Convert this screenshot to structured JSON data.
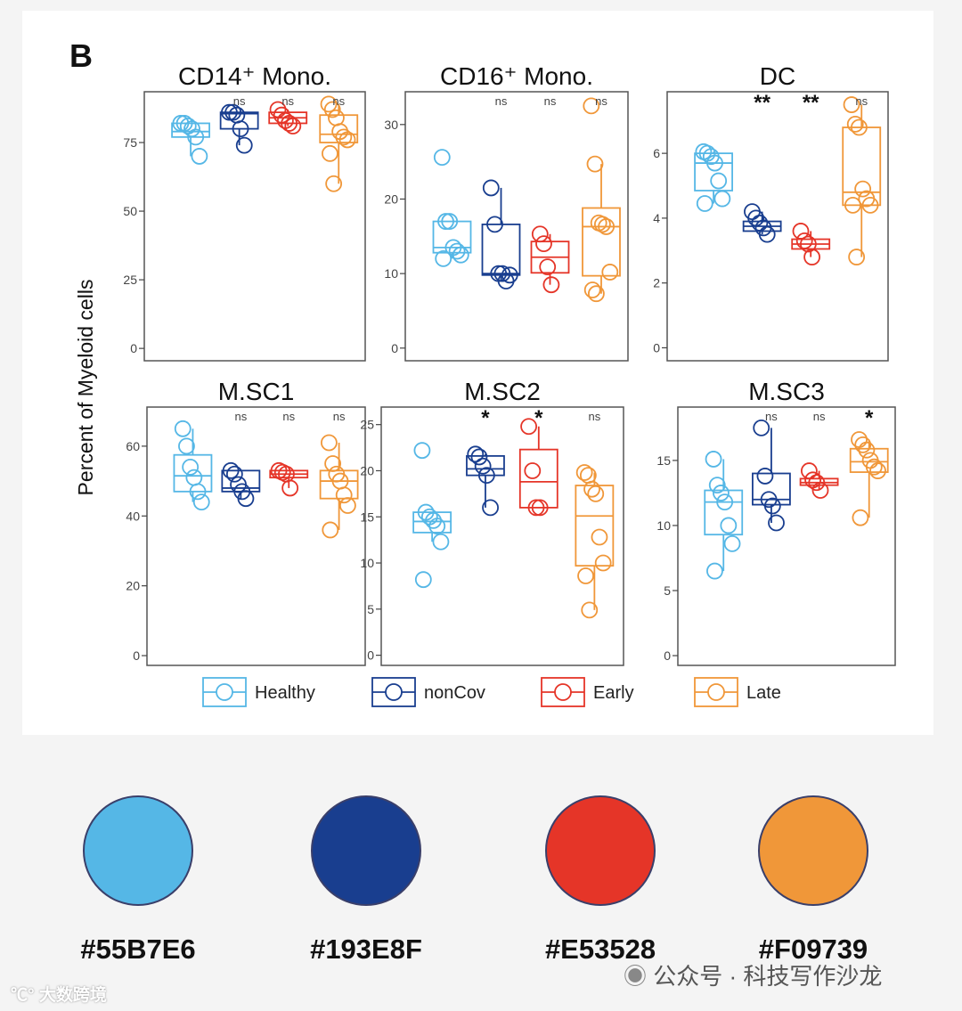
{
  "chart_data": {
    "type": "boxplot",
    "panel_label": "B",
    "ylabel": "Percent of Myeloid cells",
    "groups": [
      "Healthy",
      "nonCov",
      "Early",
      "Late"
    ],
    "colors": [
      "#55B7E6",
      "#193E8F",
      "#E53528",
      "#F09739"
    ],
    "panels": [
      {
        "title": "CD14⁺ Mono.",
        "ylim": [
          -4.5,
          93.5
        ],
        "ticks": [
          0,
          25,
          50,
          75
        ],
        "signif": [
          "",
          "ns",
          "ns",
          "ns"
        ],
        "boxes": [
          {
            "q1": 77,
            "median": 79,
            "q3": 82,
            "lo": 70,
            "hi": 82,
            "points": [
              82,
              82,
              81,
              80,
              77,
              70
            ]
          },
          {
            "q1": 80,
            "median": 85.5,
            "q3": 86,
            "lo": 74,
            "hi": 86,
            "points": [
              86,
              86,
              85,
              80,
              74
            ]
          },
          {
            "q1": 82,
            "median": 84,
            "q3": 86,
            "lo": 81,
            "hi": 87,
            "points": [
              87,
              85,
              83,
              82,
              81
            ]
          },
          {
            "q1": 75,
            "median": 78,
            "q3": 85,
            "lo": 60,
            "hi": 89,
            "points": [
              89,
              87,
              84,
              79,
              77,
              76,
              71,
              60
            ]
          }
        ]
      },
      {
        "title": "CD16⁺ Mono.",
        "ylim": [
          -1.7,
          34.4
        ],
        "ticks": [
          0,
          10,
          20,
          30
        ],
        "signif": [
          "",
          "ns",
          "ns",
          "ns"
        ],
        "boxes": [
          {
            "q1": 12.8,
            "median": 13.5,
            "q3": 17,
            "lo": 12,
            "hi": 17,
            "points": [
              25.6,
              17,
              17,
              13.5,
              13,
              12.5,
              12
            ]
          },
          {
            "q1": 9.8,
            "median": 10,
            "q3": 16.6,
            "lo": 9,
            "hi": 21.5,
            "points": [
              21.5,
              16.6,
              10,
              10,
              9,
              9.8
            ]
          },
          {
            "q1": 10.1,
            "median": 12.2,
            "q3": 14.3,
            "lo": 8.5,
            "hi": 15.3,
            "points": [
              15.3,
              14,
              10.9,
              8.5
            ]
          },
          {
            "q1": 9.7,
            "median": 16.3,
            "q3": 18.8,
            "lo": 7.3,
            "hi": 24.7,
            "points": [
              32.5,
              24.7,
              16.8,
              16.6,
              16.3,
              10.2,
              7.8,
              7.3
            ]
          }
        ]
      },
      {
        "title": "DC",
        "ylim": [
          -0.4,
          7.9
        ],
        "ticks": [
          0,
          2,
          4,
          6
        ],
        "signif": [
          "",
          "**",
          "**",
          "ns"
        ],
        "boxes": [
          {
            "q1": 4.85,
            "median": 5.7,
            "q3": 6.0,
            "lo": 4.45,
            "hi": 6.05,
            "points": [
              6.05,
              6.0,
              5.9,
              5.7,
              5.15,
              4.6,
              4.45
            ]
          },
          {
            "q1": 3.6,
            "median": 3.75,
            "q3": 3.9,
            "lo": 3.5,
            "hi": 4.2,
            "points": [
              4.2,
              4.0,
              3.85,
              3.7,
              3.5
            ]
          },
          {
            "q1": 3.05,
            "median": 3.2,
            "q3": 3.35,
            "lo": 2.8,
            "hi": 3.6,
            "points": [
              3.6,
              3.3,
              3.2,
              2.8
            ]
          },
          {
            "q1": 4.4,
            "median": 4.8,
            "q3": 6.8,
            "lo": 2.8,
            "hi": 7.5,
            "points": [
              7.5,
              6.9,
              6.8,
              4.9,
              4.6,
              4.4,
              4.4,
              2.8
            ]
          }
        ]
      },
      {
        "title": "M.SC1",
        "ylim": [
          -2.8,
          71.2
        ],
        "ticks": [
          0,
          20,
          40,
          60
        ],
        "signif": [
          "",
          "ns",
          "ns",
          "ns"
        ],
        "boxes": [
          {
            "q1": 47,
            "median": 51.5,
            "q3": 57.5,
            "lo": 44,
            "hi": 65,
            "points": [
              65,
              60,
              54,
              51,
              47,
              44
            ]
          },
          {
            "q1": 47,
            "median": 48,
            "q3": 53,
            "lo": 45,
            "hi": 53,
            "points": [
              53,
              52,
              49,
              47,
              45
            ]
          },
          {
            "q1": 51,
            "median": 52,
            "q3": 53,
            "lo": 48,
            "hi": 53,
            "points": [
              53,
              52.5,
              52,
              48
            ]
          },
          {
            "q1": 45,
            "median": 50,
            "q3": 53,
            "lo": 36,
            "hi": 61,
            "points": [
              61,
              55,
              52,
              50,
              46,
              43,
              36
            ]
          }
        ]
      },
      {
        "title": "M.SC2",
        "ylim": [
          -1.1,
          26.9
        ],
        "ticks": [
          0,
          5,
          10,
          15,
          20,
          25
        ],
        "signif": [
          "",
          "*",
          "*",
          "ns"
        ],
        "boxes": [
          {
            "q1": 13.3,
            "median": 14.5,
            "q3": 15.5,
            "lo": 12.3,
            "hi": 15.5,
            "points": [
              22.2,
              15.5,
              15,
              14.6,
              14,
              12.3,
              8.2
            ]
          },
          {
            "q1": 19.5,
            "median": 20.2,
            "q3": 21.6,
            "lo": 16,
            "hi": 21.8,
            "points": [
              21.8,
              21.5,
              20.5,
              19.5,
              16
            ]
          },
          {
            "q1": 16,
            "median": 18.8,
            "q3": 22.3,
            "lo": 16,
            "hi": 24.8,
            "points": [
              24.8,
              20,
              16,
              16
            ]
          },
          {
            "q1": 9.7,
            "median": 15.1,
            "q3": 18.4,
            "lo": 4.9,
            "hi": 19.8,
            "points": [
              19.8,
              19.5,
              18,
              17.5,
              12.8,
              10,
              8.6,
              4.9
            ]
          }
        ]
      },
      {
        "title": "M.SC3",
        "ylim": [
          -0.75,
          19.1
        ],
        "ticks": [
          0,
          5,
          10,
          15
        ],
        "signif": [
          "",
          "ns",
          "ns",
          "*"
        ],
        "boxes": [
          {
            "q1": 9.3,
            "median": 11.8,
            "q3": 12.7,
            "lo": 6.5,
            "hi": 15.1,
            "points": [
              15.1,
              13.1,
              12.5,
              11.8,
              10,
              8.6,
              6.5
            ]
          },
          {
            "q1": 11.6,
            "median": 12,
            "q3": 14,
            "lo": 10.2,
            "hi": 17.5,
            "points": [
              17.5,
              13.8,
              12,
              11.5,
              10.2
            ]
          },
          {
            "q1": 13.1,
            "median": 13.3,
            "q3": 13.6,
            "lo": 12.7,
            "hi": 14.2,
            "points": [
              14.2,
              13.5,
              13.3,
              12.7
            ]
          },
          {
            "q1": 14.1,
            "median": 14.9,
            "q3": 15.9,
            "lo": 10.6,
            "hi": 16.6,
            "points": [
              16.6,
              16.2,
              15.8,
              15,
              14.5,
              14.2,
              10.6
            ]
          }
        ]
      }
    ],
    "legend_placement": "bottom"
  },
  "swatches": [
    {
      "hex": "#55B7E6"
    },
    {
      "hex": "#193E8F"
    },
    {
      "hex": "#E53528"
    },
    {
      "hex": "#F09739"
    }
  ],
  "watermark": {
    "right": "公众号 · 科技写作沙龙",
    "left": "大数跨境"
  }
}
